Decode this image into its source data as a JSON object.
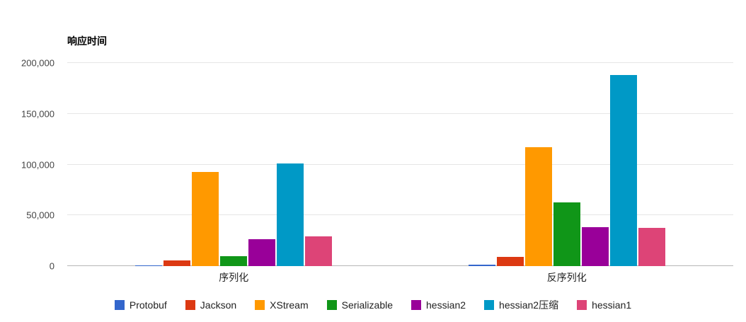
{
  "chart_data": {
    "type": "bar",
    "title": "响应时间",
    "categories": [
      "序列化",
      "反序列化"
    ],
    "series": [
      {
        "name": "Protobuf",
        "color": "#3366cc",
        "values": [
          1000,
          1500
        ]
      },
      {
        "name": "Jackson",
        "color": "#dc3912",
        "values": [
          5500,
          9000
        ]
      },
      {
        "name": "XStream",
        "color": "#ff9900",
        "values": [
          93000,
          117000
        ]
      },
      {
        "name": "Serializable",
        "color": "#109618",
        "values": [
          10000,
          63000
        ]
      },
      {
        "name": "hessian2",
        "color": "#990099",
        "values": [
          26500,
          38500
        ]
      },
      {
        "name": "hessian2压缩",
        "color": "#0099c6",
        "values": [
          101000,
          188000
        ]
      },
      {
        "name": "hessian1",
        "color": "#dd4477",
        "values": [
          29000,
          37500
        ]
      }
    ],
    "xlabel": "",
    "ylabel": "",
    "ylim": [
      0,
      200000
    ],
    "yticks": [
      0,
      50000,
      100000,
      150000,
      200000
    ],
    "ytick_labels": [
      "0",
      "50,000",
      "100,000",
      "150,000",
      "200,000"
    ],
    "grid": true,
    "legend_position": "bottom"
  }
}
